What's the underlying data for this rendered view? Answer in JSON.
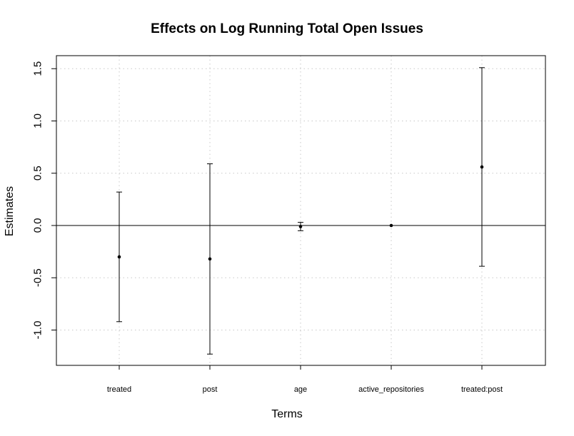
{
  "chart_data": {
    "type": "errorbar",
    "title": "Effects on Log Running Total Open Issues",
    "xlabel": "Terms",
    "ylabel": "Estimates",
    "categories": [
      "treated",
      "post",
      "age",
      "active_repositories",
      "treated:post"
    ],
    "estimates": [
      -0.3,
      -0.32,
      -0.01,
      0.0,
      0.56
    ],
    "lower": [
      -0.92,
      -1.23,
      -0.05,
      0.0,
      -0.39
    ],
    "upper": [
      0.32,
      0.59,
      0.03,
      0.0,
      1.51
    ],
    "ylim": [
      -1.35,
      1.6
    ],
    "yticks": [
      -1.0,
      -0.5,
      0.0,
      0.5,
      1.0,
      1.5
    ],
    "ytick_labels": [
      "-1.0",
      "-0.5",
      "0.0",
      "0.5",
      "1.0",
      "1.5"
    ],
    "reference_line": 0,
    "grid": true
  }
}
